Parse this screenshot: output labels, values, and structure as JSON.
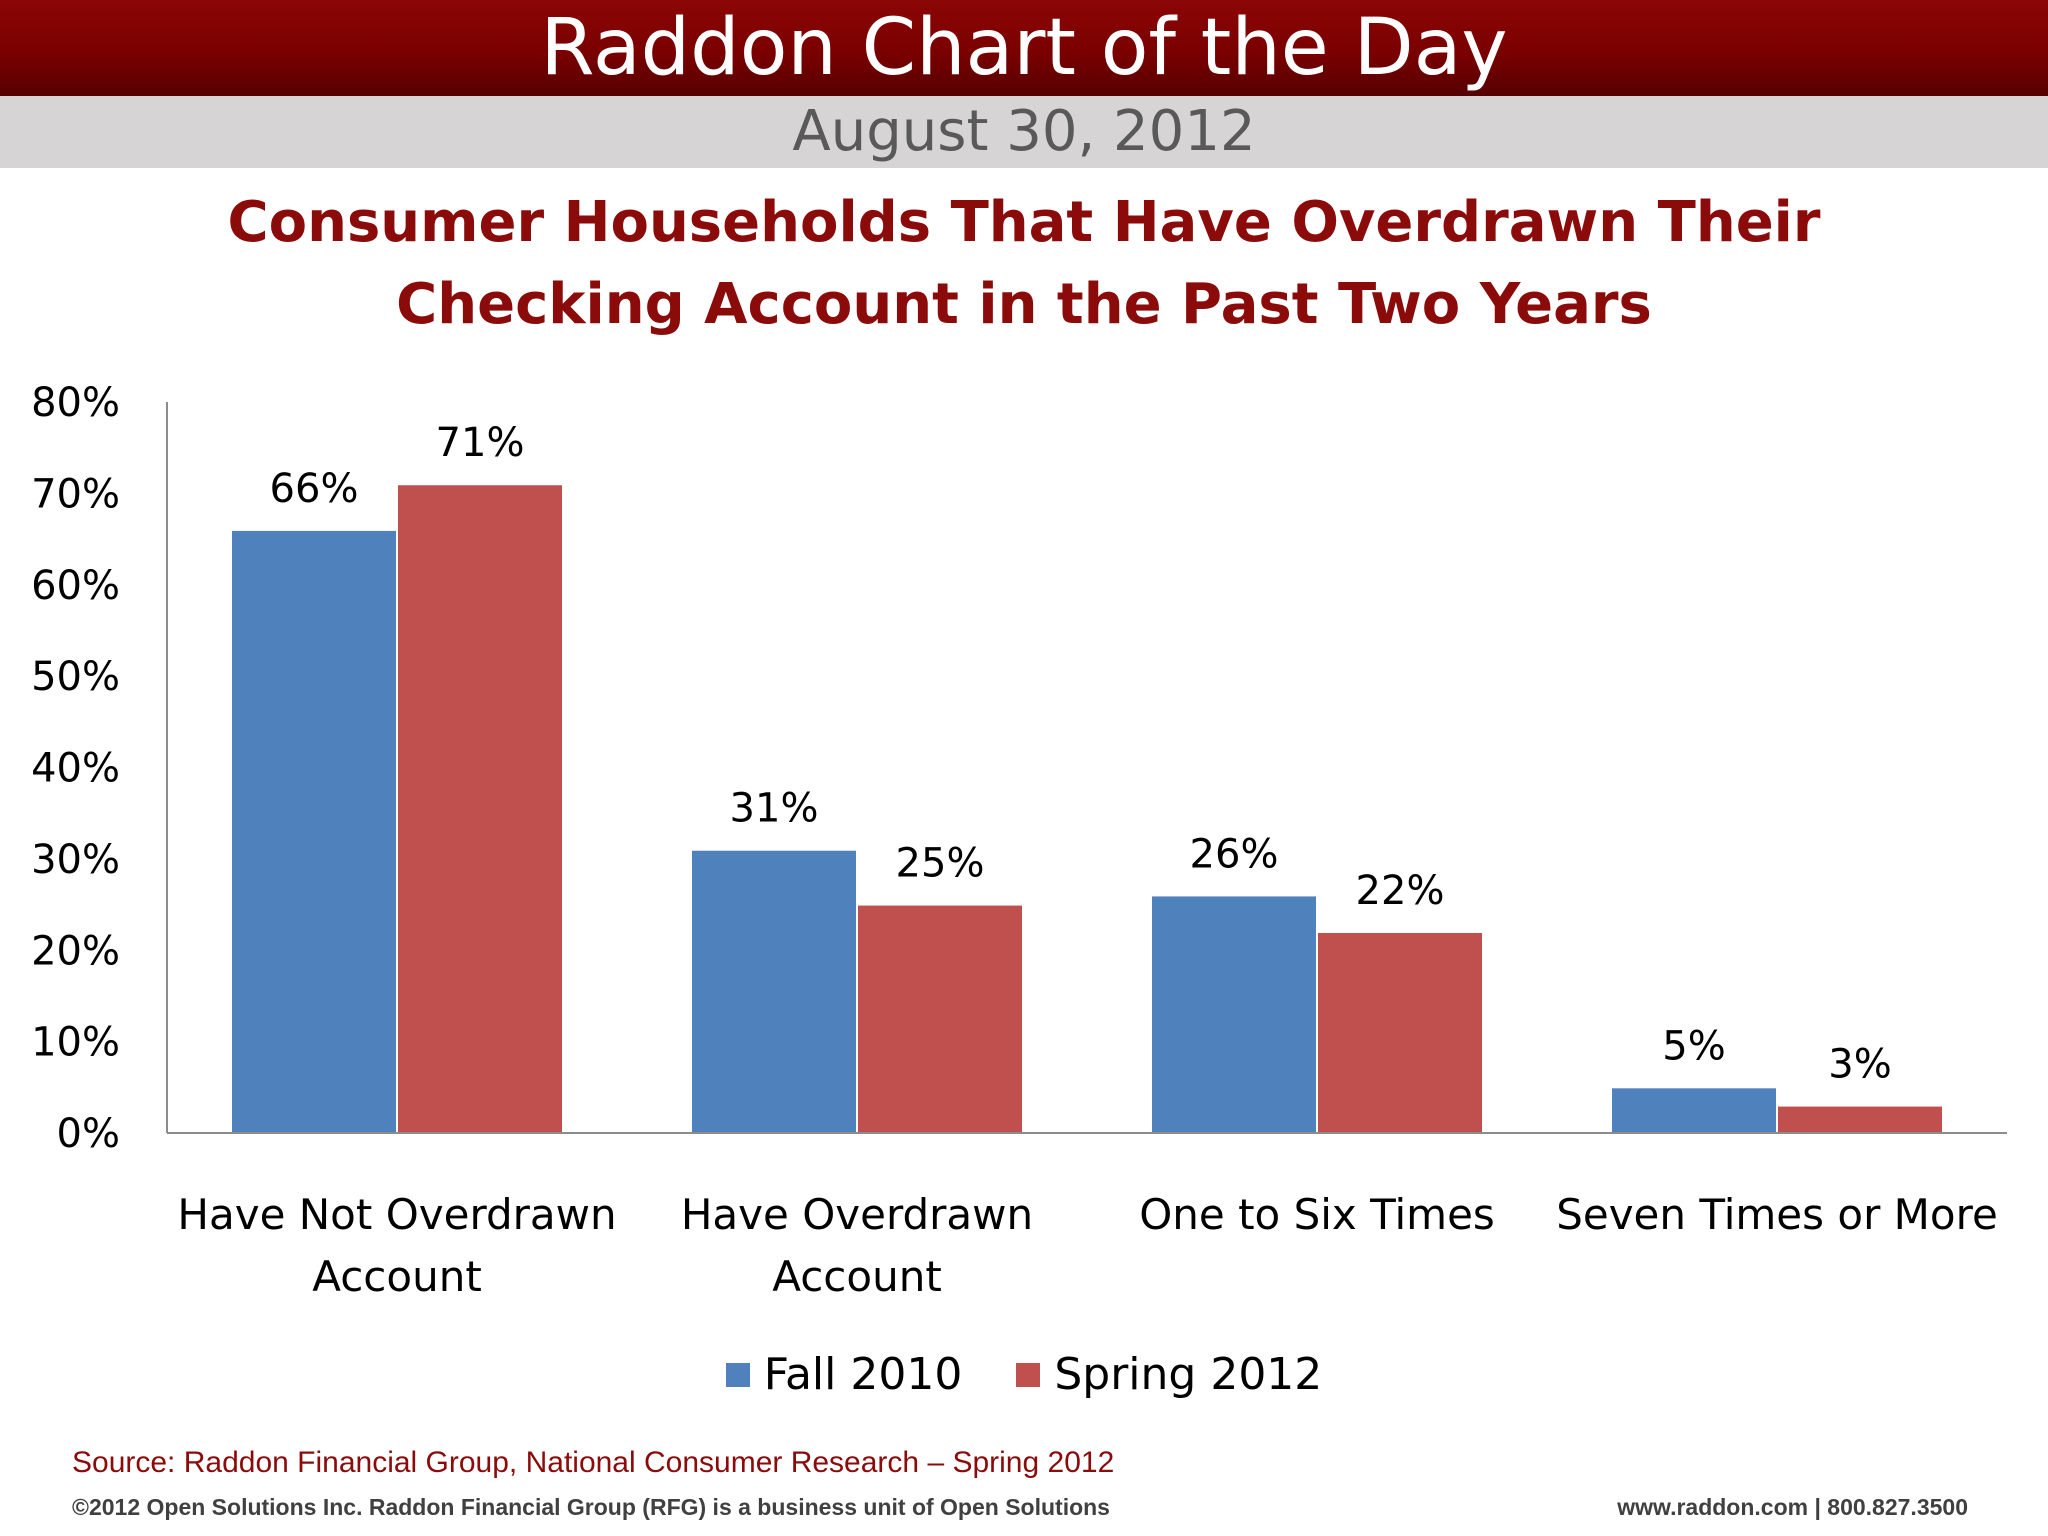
{
  "header": {
    "banner_title": "Raddon Chart of the Day",
    "date": "August 30, 2012"
  },
  "chart_data": {
    "type": "bar",
    "title_lines": [
      "Consumer Households That Have Overdrawn Their",
      "Checking Account in the Past Two Years"
    ],
    "categories": [
      [
        "Have Not Overdrawn",
        "Account"
      ],
      [
        "Have Overdrawn",
        "Account"
      ],
      [
        "One to Six Times"
      ],
      [
        "Seven Times or More"
      ]
    ],
    "series": [
      {
        "name": "Fall 2010",
        "color": "#4f81bd",
        "values": [
          66,
          31,
          26,
          5
        ],
        "labels": [
          "66%",
          "31%",
          "26%",
          "5%"
        ]
      },
      {
        "name": "Spring 2012",
        "color": "#c0504d",
        "values": [
          71,
          25,
          22,
          3
        ],
        "labels": [
          "71%",
          "25%",
          "22%",
          "3%"
        ]
      }
    ],
    "ylim": [
      0,
      80
    ],
    "yticks": [
      0,
      10,
      20,
      30,
      40,
      50,
      60,
      70,
      80
    ],
    "ytick_labels": [
      "0%",
      "10%",
      "20%",
      "30%",
      "40%",
      "50%",
      "60%",
      "70%",
      "80%"
    ],
    "xlabel": "",
    "ylabel": "",
    "grid": false,
    "legend_position": "bottom"
  },
  "footer": {
    "source": "Source: Raddon Financial Group, National Consumer Research – Spring 2012",
    "copyright": "©2012 Open Solutions Inc.  Raddon Financial Group (RFG) is a business unit of Open Solutions",
    "contact": "www.raddon.com  |  800.827.3500"
  }
}
